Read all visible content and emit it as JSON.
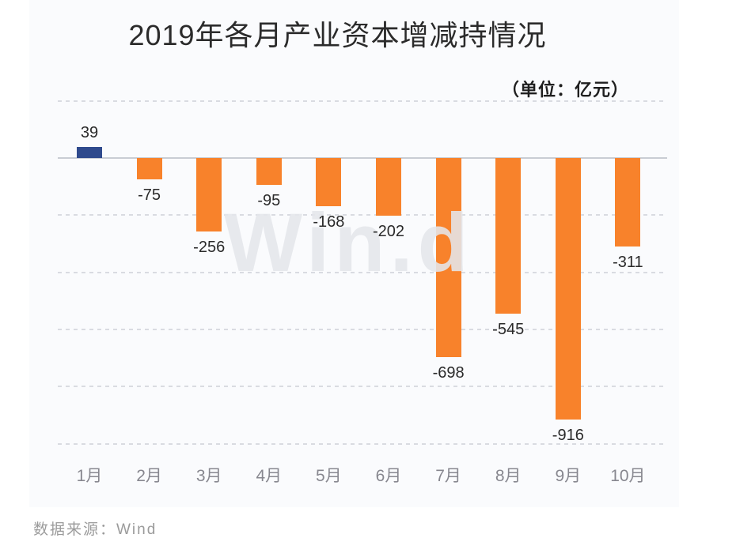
{
  "chart": {
    "title": "2019年各月产业资本增减持情况",
    "unit_label": "（单位：亿元）",
    "watermark": "Win.d",
    "source": "数据来源：Wind"
  },
  "chart_data": {
    "type": "bar",
    "title": "2019年各月产业资本增减持情况",
    "unit": "亿元",
    "categories": [
      "1月",
      "2月",
      "3月",
      "4月",
      "5月",
      "6月",
      "7月",
      "8月",
      "9月",
      "10月"
    ],
    "values": [
      39,
      -75,
      -256,
      -95,
      -168,
      -202,
      -698,
      -545,
      -916,
      -311
    ],
    "data_labels": [
      "39",
      "-75",
      "-256",
      "-95",
      "-168",
      "-202",
      "-698",
      "-545",
      "-916",
      "-311"
    ],
    "xlabel": "",
    "ylabel": "",
    "ylim": [
      -1000,
      200
    ],
    "y_gridline_values": [
      200,
      0,
      -200,
      -400,
      -600,
      -800,
      -1000
    ],
    "grid": "horizontal dashed, zero line solid, no y tick labels",
    "legend": "none",
    "colors": {
      "positive_bar": "#2F4A8D",
      "negative_bar": "#F8822B",
      "panel_background": "#FAFBFD",
      "gridline": "#D9DBE1",
      "zero_line": "#C9CDD4",
      "value_label_text": "#2A2A2A",
      "axis_label_text": "#87878F",
      "watermark_text": "#E4E6EB",
      "source_text": "#9B9B9B"
    }
  }
}
